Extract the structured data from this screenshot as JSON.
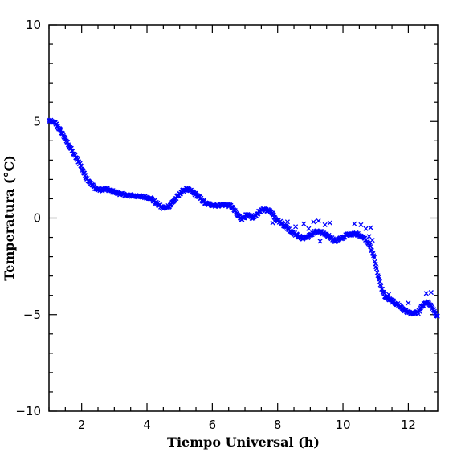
{
  "chart_data": {
    "type": "scatter",
    "title": "",
    "xlabel": "Tiempo Universal (h)",
    "ylabel": "Temperatura (°C)",
    "xlim": [
      1.0,
      12.9
    ],
    "ylim": [
      -10,
      10
    ],
    "xticks": [
      2,
      4,
      6,
      8,
      10,
      12
    ],
    "xtick_labels": [
      "2",
      "4",
      "6",
      "8",
      "10",
      "12"
    ],
    "yticks": [
      -10,
      -5,
      0,
      5,
      10
    ],
    "ytick_labels": [
      "−10",
      "−5",
      "0",
      "5",
      "10"
    ],
    "x_minor_step": 0.5,
    "y_minor_step": 1,
    "grid": false,
    "legend": "none",
    "marker": "x",
    "marker_color": "#0000ff",
    "profile_points": [
      [
        1.0,
        5.05
      ],
      [
        1.2,
        4.9
      ],
      [
        1.4,
        4.4
      ],
      [
        1.6,
        3.8
      ],
      [
        1.8,
        3.2
      ],
      [
        1.95,
        2.8
      ],
      [
        2.1,
        2.2
      ],
      [
        2.3,
        1.75
      ],
      [
        2.45,
        1.5
      ],
      [
        2.6,
        1.45
      ],
      [
        2.75,
        1.5
      ],
      [
        3.0,
        1.35
      ],
      [
        3.3,
        1.2
      ],
      [
        3.6,
        1.15
      ],
      [
        3.9,
        1.1
      ],
      [
        4.1,
        1.05
      ],
      [
        4.3,
        0.75
      ],
      [
        4.5,
        0.5
      ],
      [
        4.7,
        0.65
      ],
      [
        4.9,
        1.05
      ],
      [
        5.05,
        1.35
      ],
      [
        5.2,
        1.5
      ],
      [
        5.35,
        1.4
      ],
      [
        5.55,
        1.15
      ],
      [
        5.8,
        0.75
      ],
      [
        6.1,
        0.65
      ],
      [
        6.4,
        0.7
      ],
      [
        6.6,
        0.6
      ],
      [
        6.75,
        0.2
      ],
      [
        6.9,
        -0.05
      ],
      [
        7.05,
        0.15
      ],
      [
        7.25,
        0.0
      ],
      [
        7.45,
        0.35
      ],
      [
        7.6,
        0.45
      ],
      [
        7.8,
        0.35
      ],
      [
        7.95,
        -0.05
      ],
      [
        8.15,
        -0.3
      ],
      [
        8.35,
        -0.6
      ],
      [
        8.55,
        -0.85
      ],
      [
        8.75,
        -1.05
      ],
      [
        8.95,
        -0.95
      ],
      [
        9.15,
        -0.7
      ],
      [
        9.35,
        -0.75
      ],
      [
        9.55,
        -0.9
      ],
      [
        9.75,
        -1.2
      ],
      [
        9.95,
        -1.05
      ],
      [
        10.15,
        -0.85
      ],
      [
        10.4,
        -0.8
      ],
      [
        10.6,
        -0.95
      ],
      [
        10.8,
        -1.35
      ],
      [
        10.95,
        -2.0
      ],
      [
        11.05,
        -2.8
      ],
      [
        11.15,
        -3.5
      ],
      [
        11.3,
        -4.1
      ],
      [
        11.5,
        -4.3
      ],
      [
        11.7,
        -4.5
      ],
      [
        11.9,
        -4.8
      ],
      [
        12.1,
        -4.95
      ],
      [
        12.3,
        -4.9
      ],
      [
        12.45,
        -4.5
      ],
      [
        12.6,
        -4.35
      ],
      [
        12.75,
        -4.7
      ],
      [
        12.9,
        -5.15
      ]
    ],
    "scatter_offsets": [
      [
        8.8,
        -0.3
      ],
      [
        8.95,
        -0.55
      ],
      [
        9.1,
        -0.2
      ],
      [
        9.25,
        -0.15
      ],
      [
        9.45,
        -0.35
      ],
      [
        9.6,
        -0.25
      ],
      [
        8.55,
        -0.45
      ],
      [
        10.35,
        -0.3
      ],
      [
        10.55,
        -0.35
      ],
      [
        10.7,
        -0.55
      ],
      [
        10.85,
        -0.5
      ],
      [
        10.8,
        -0.95
      ],
      [
        10.9,
        -1.15
      ],
      [
        12.0,
        -4.4
      ],
      [
        12.55,
        -3.9
      ],
      [
        12.7,
        -3.85
      ],
      [
        7.85,
        -0.25
      ],
      [
        8.3,
        -0.2
      ],
      [
        11.4,
        -3.95
      ],
      [
        9.3,
        -1.2
      ]
    ]
  }
}
